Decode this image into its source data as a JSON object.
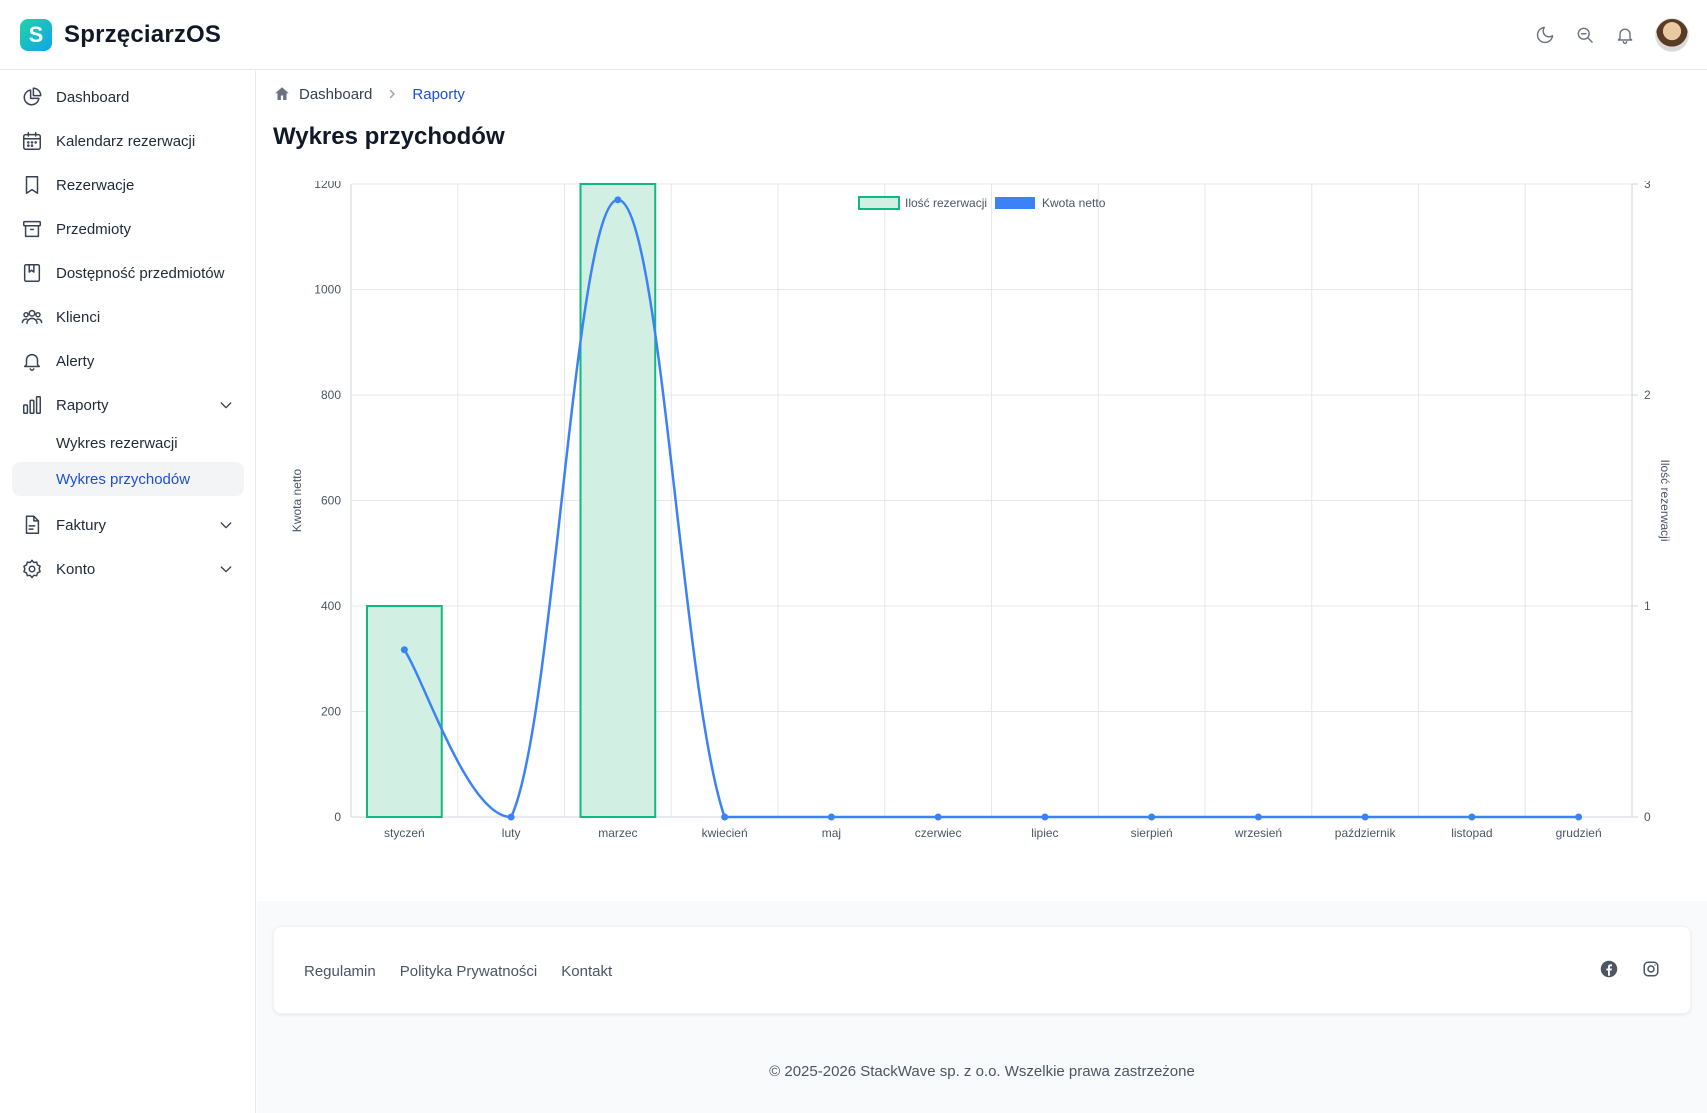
{
  "header": {
    "logo_letter": "S",
    "brand": "SprzęciarzOS",
    "actions": [
      {
        "name": "theme-toggle",
        "icon": "moon-icon"
      },
      {
        "name": "search",
        "icon": "search-icon"
      },
      {
        "name": "notifications",
        "icon": "bell-icon"
      }
    ]
  },
  "sidebar": {
    "items": [
      {
        "label": "Dashboard",
        "icon": "chart-pie-icon"
      },
      {
        "label": "Kalendarz rezerwacji",
        "icon": "calendar-icon"
      },
      {
        "label": "Rezerwacje",
        "icon": "bookmark-icon"
      },
      {
        "label": "Przedmioty",
        "icon": "archive-box-icon"
      },
      {
        "label": "Dostępność przedmiotów",
        "icon": "book-icon"
      },
      {
        "label": "Klienci",
        "icon": "users-icon"
      },
      {
        "label": "Alerty",
        "icon": "bell-icon"
      },
      {
        "label": "Raporty",
        "icon": "bar-chart-icon",
        "expanded": true
      },
      {
        "label": "Faktury",
        "icon": "document-icon",
        "expanded": false
      },
      {
        "label": "Konto",
        "icon": "gear-icon",
        "expanded": false
      }
    ],
    "raporty_sub": [
      "Wykres rezerwacji",
      "Wykres przychodów"
    ],
    "active_sub": "Wykres przychodów"
  },
  "breadcrumb": {
    "home": "Dashboard",
    "current": "Raporty"
  },
  "page_title": "Wykres przychodów",
  "chart_data": {
    "type": "bar",
    "categories": [
      "styczeń",
      "luty",
      "marzec",
      "kwiecień",
      "maj",
      "czerwiec",
      "lipiec",
      "sierpień",
      "wrzesień",
      "październik",
      "listopad",
      "grudzień"
    ],
    "series": [
      {
        "name": "Ilość rezerwacji",
        "type": "bar",
        "axis": "right",
        "values": [
          1,
          0,
          3,
          0,
          0,
          0,
          0,
          0,
          0,
          0,
          0,
          0
        ],
        "color": "#10b981",
        "fill": "#d1f0e3"
      },
      {
        "name": "Kwota netto",
        "type": "line",
        "axis": "left",
        "values": [
          317,
          0,
          1170,
          0,
          0,
          0,
          0,
          0,
          0,
          0,
          0,
          0
        ],
        "color": "#3b82f6"
      }
    ],
    "ylabel": "Kwota netto",
    "y2label": "Ilość rezerwacji",
    "ylim": [
      0,
      1200
    ],
    "y2lim": [
      0,
      3
    ],
    "yticks": [
      "0",
      "200",
      "400",
      "600",
      "800",
      "1000",
      "1200"
    ],
    "y2ticks": [
      "0",
      "1",
      "2",
      "3"
    ],
    "grid": true,
    "legend": "top-center"
  },
  "footer": {
    "links": [
      "Regulamin",
      "Polityka Prywatności",
      "Kontakt"
    ],
    "social": [
      "facebook-icon",
      "instagram-icon"
    ],
    "copyright": "© 2025-2026 StackWave sp. z o.o. Wszelkie prawa zastrzeżone"
  }
}
